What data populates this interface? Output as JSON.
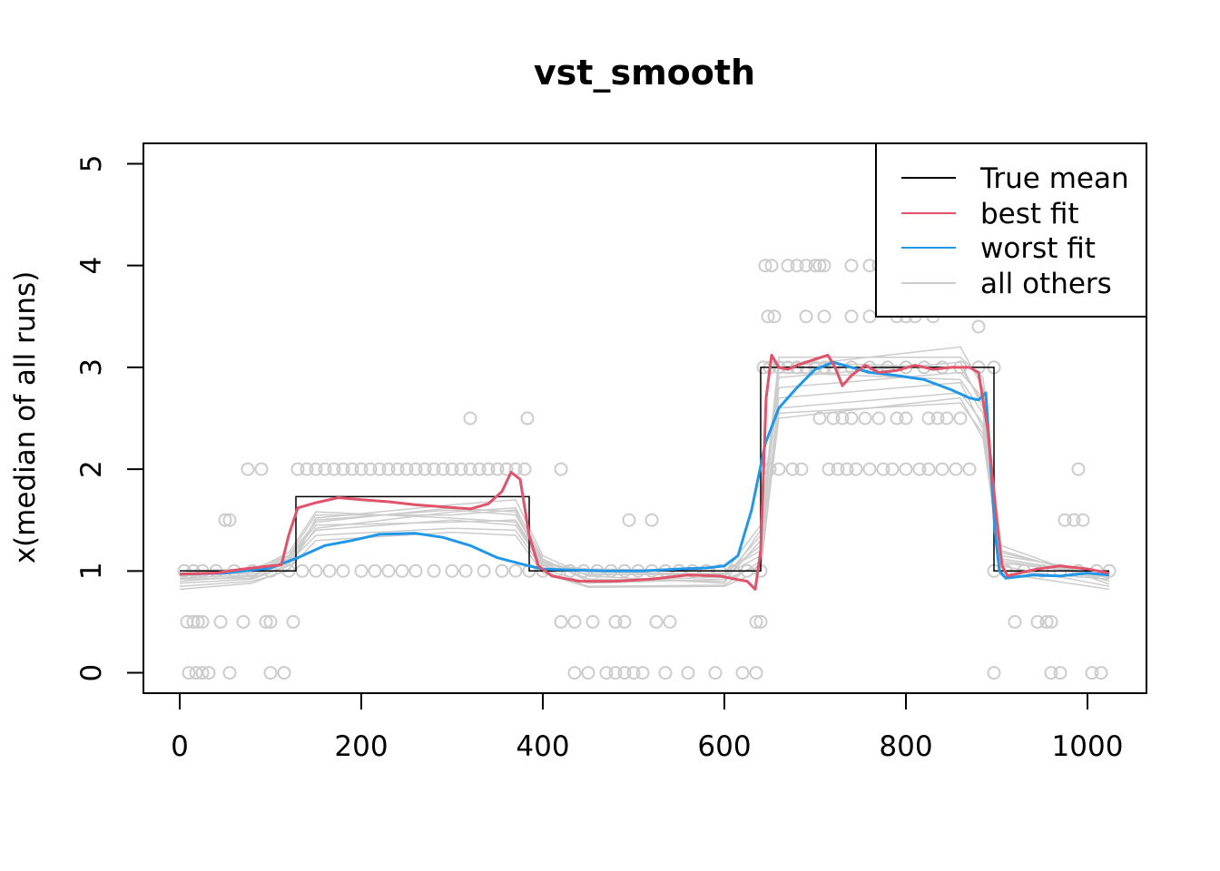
{
  "chart_data": {
    "type": "line",
    "title": "vst_smooth",
    "xlabel": "",
    "ylabel": "x(median of all runs)",
    "xlim": [
      -40,
      1065
    ],
    "ylim": [
      -0.2,
      5.2
    ],
    "xticks": [
      0,
      200,
      400,
      600,
      800,
      1000
    ],
    "yticks": [
      0,
      1,
      2,
      3,
      4,
      5
    ],
    "legend_position": "top-right",
    "colors": {
      "true_mean": "#000000",
      "best_fit": "#DF536B",
      "worst_fit": "#2297E6",
      "others": "#CCCCCC"
    },
    "legend": [
      "True mean",
      "best fit",
      "worst fit",
      "all others"
    ],
    "true_mean": {
      "x": [
        0,
        128,
        128,
        385,
        385,
        640,
        640,
        897,
        897,
        1024
      ],
      "y": [
        1,
        1,
        1.73,
        1.73,
        1,
        1,
        3,
        3,
        1,
        1
      ]
    },
    "series": [
      {
        "name": "best fit",
        "x": [
          0,
          40,
          70,
          100,
          112,
          120,
          130,
          150,
          175,
          200,
          230,
          260,
          290,
          320,
          340,
          355,
          365,
          375,
          385,
          395,
          410,
          440,
          480,
          520,
          560,
          595,
          612,
          625,
          634,
          640,
          646,
          652,
          660,
          670,
          680,
          700,
          714,
          722,
          730,
          740,
          755,
          770,
          790,
          810,
          830,
          850,
          870,
          880,
          890,
          900,
          906,
          912,
          925,
          945,
          970,
          1000,
          1024
        ],
        "y": [
          0.97,
          0.98,
          1.02,
          1.05,
          1.06,
          1.35,
          1.62,
          1.67,
          1.72,
          1.7,
          1.68,
          1.65,
          1.63,
          1.61,
          1.66,
          1.78,
          1.97,
          1.9,
          1.35,
          1.05,
          0.95,
          0.9,
          0.9,
          0.92,
          0.96,
          0.95,
          0.92,
          0.9,
          0.82,
          1.2,
          2.7,
          3.12,
          3.0,
          2.98,
          3.02,
          3.08,
          3.12,
          3.0,
          2.82,
          2.92,
          3.02,
          2.95,
          2.97,
          3.02,
          2.98,
          3.0,
          3.0,
          2.95,
          2.4,
          1.5,
          1.05,
          0.95,
          0.98,
          1.02,
          1.05,
          1.02,
          0.98
        ]
      },
      {
        "name": "worst fit",
        "x": [
          0,
          50,
          100,
          130,
          160,
          190,
          220,
          260,
          290,
          320,
          350,
          380,
          400,
          430,
          470,
          510,
          550,
          580,
          600,
          615,
          630,
          645,
          660,
          680,
          700,
          720,
          740,
          760,
          790,
          820,
          850,
          870,
          880,
          888,
          893,
          898,
          903,
          910,
          940,
          970,
          1000,
          1024
        ],
        "y": [
          0.97,
          0.98,
          1.03,
          1.13,
          1.25,
          1.3,
          1.36,
          1.37,
          1.33,
          1.25,
          1.13,
          1.06,
          1.02,
          1.01,
          1.0,
          1.0,
          1.02,
          1.03,
          1.05,
          1.15,
          1.6,
          2.25,
          2.6,
          2.8,
          2.98,
          3.05,
          3.0,
          2.95,
          2.92,
          2.88,
          2.78,
          2.7,
          2.68,
          2.75,
          2.1,
          1.4,
          1.0,
          0.93,
          0.96,
          0.95,
          0.98,
          0.96
        ]
      }
    ],
    "others": [
      {
        "x": [
          0,
          80,
          120,
          150,
          300,
          370,
          400,
          450,
          600,
          640,
          660,
          860,
          885,
          905,
          1024
        ],
        "y": [
          0.93,
          0.96,
          1.1,
          1.4,
          1.5,
          1.45,
          1.05,
          0.97,
          0.96,
          1.15,
          2.7,
          2.85,
          2.4,
          1.1,
          0.94
        ]
      },
      {
        "x": [
          0,
          80,
          120,
          150,
          300,
          370,
          400,
          450,
          600,
          640,
          660,
          860,
          885,
          905,
          1024
        ],
        "y": [
          0.88,
          0.92,
          1.05,
          1.5,
          1.6,
          1.55,
          1.1,
          0.92,
          0.9,
          1.3,
          2.9,
          3.05,
          2.6,
          1.2,
          0.9
        ]
      },
      {
        "x": [
          0,
          80,
          120,
          150,
          300,
          370,
          400,
          450,
          600,
          640,
          660,
          860,
          885,
          905,
          1024
        ],
        "y": [
          1.0,
          1.02,
          1.15,
          1.55,
          1.55,
          1.6,
          1.0,
          0.85,
          0.86,
          1.1,
          2.5,
          2.7,
          2.3,
          1.05,
          0.85
        ]
      },
      {
        "x": [
          0,
          80,
          120,
          150,
          300,
          370,
          400,
          450,
          600,
          640,
          660,
          860,
          885,
          905,
          1024
        ],
        "y": [
          0.95,
          0.98,
          1.12,
          1.45,
          1.48,
          1.5,
          1.08,
          0.99,
          0.97,
          1.25,
          3.0,
          3.2,
          2.8,
          1.15,
          0.98
        ]
      },
      {
        "x": [
          0,
          80,
          120,
          150,
          300,
          370,
          400,
          450,
          600,
          640,
          660,
          860,
          885,
          905,
          1024
        ],
        "y": [
          0.9,
          0.95,
          1.08,
          1.35,
          1.42,
          1.4,
          1.02,
          0.88,
          0.92,
          1.05,
          2.6,
          2.75,
          2.45,
          1.0,
          0.92
        ]
      },
      {
        "x": [
          0,
          80,
          120,
          150,
          300,
          370,
          400,
          450,
          600,
          640,
          660,
          860,
          885,
          905,
          1024
        ],
        "y": [
          0.85,
          0.9,
          1.0,
          1.52,
          1.65,
          1.7,
          1.15,
          0.95,
          0.88,
          1.4,
          2.8,
          2.95,
          2.7,
          1.25,
          0.87
        ]
      },
      {
        "x": [
          0,
          80,
          120,
          150,
          300,
          370,
          400,
          450,
          600,
          640,
          660,
          860,
          885,
          905,
          1024
        ],
        "y": [
          0.98,
          1.0,
          1.18,
          1.58,
          1.52,
          1.48,
          1.06,
          1.02,
          1.0,
          1.2,
          2.95,
          2.88,
          2.55,
          1.08,
          0.96
        ]
      },
      {
        "x": [
          0,
          80,
          120,
          150,
          300,
          370,
          400,
          450,
          600,
          640,
          660,
          860,
          885,
          905,
          1024
        ],
        "y": [
          0.92,
          0.93,
          1.06,
          1.42,
          1.58,
          1.62,
          1.12,
          0.9,
          0.94,
          1.35,
          3.1,
          3.1,
          2.9,
          1.18,
          0.93
        ]
      },
      {
        "x": [
          0,
          80,
          120,
          150,
          300,
          370,
          400,
          450,
          600,
          640,
          660,
          860,
          885,
          905,
          1024
        ],
        "y": [
          0.82,
          0.88,
          1.02,
          1.3,
          1.38,
          1.35,
          0.98,
          0.84,
          0.85,
          1.0,
          2.55,
          2.65,
          2.35,
          0.98,
          0.82
        ]
      },
      {
        "x": [
          0,
          80,
          120,
          150,
          300,
          370,
          400,
          450,
          600,
          640,
          660,
          860,
          885,
          905,
          1024
        ],
        "y": [
          0.96,
          0.99,
          1.14,
          1.48,
          1.62,
          1.58,
          1.09,
          0.96,
          0.98,
          1.45,
          3.05,
          3.0,
          2.65,
          1.12,
          0.95
        ]
      }
    ],
    "points": {
      "y0": [
        10,
        18,
        25,
        32,
        55,
        100,
        115,
        435,
        450,
        470,
        480,
        490,
        500,
        510,
        535,
        560,
        590,
        620,
        635,
        897,
        960,
        970,
        1005,
        1015
      ],
      "y0_5": [
        8,
        15,
        20,
        25,
        45,
        70,
        95,
        100,
        125,
        420,
        435,
        455,
        480,
        490,
        525,
        540,
        635,
        640,
        920,
        945,
        955,
        960
      ],
      "y1": [
        5,
        15,
        25,
        40,
        60,
        80,
        100,
        120,
        135,
        150,
        165,
        180,
        200,
        215,
        230,
        245,
        260,
        280,
        300,
        315,
        335,
        355,
        370,
        385,
        400,
        415,
        430,
        445,
        460,
        475,
        490,
        505,
        520,
        535,
        550,
        565,
        580,
        595,
        610,
        625,
        640,
        897,
        910,
        930,
        950,
        970,
        990,
        1010,
        1024
      ],
      "y1_5": [
        55,
        495,
        520,
        985,
        995
      ],
      "y2": [
        75,
        90,
        130,
        140,
        150,
        160,
        170,
        180,
        190,
        200,
        210,
        220,
        230,
        240,
        250,
        260,
        270,
        280,
        290,
        300,
        310,
        320,
        330,
        340,
        350,
        360,
        370,
        380,
        420,
        650,
        660,
        675,
        685,
        715,
        725,
        735,
        745,
        760,
        775,
        785,
        800,
        815,
        825,
        840,
        855,
        870,
        990
      ],
      "y2_5": [
        320,
        383,
        705,
        720,
        730,
        740,
        755,
        770,
        790,
        800,
        825,
        835,
        845,
        860
      ],
      "y3": [
        643,
        650,
        660,
        670,
        680,
        690,
        700,
        710,
        720,
        740,
        760,
        780,
        800,
        820,
        840,
        860,
        880,
        897
      ],
      "y3_5": [
        648,
        655,
        690,
        710,
        740,
        760,
        790,
        800,
        810,
        830
      ],
      "y4": [
        645,
        652,
        670,
        680,
        690,
        700,
        705,
        710,
        740,
        760,
        770,
        790
      ],
      "mid": [
        [
          50,
          1.5
        ],
        [
          880,
          3.4
        ],
        [
          975,
          1.5
        ]
      ]
    }
  }
}
